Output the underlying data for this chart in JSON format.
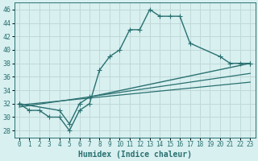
{
  "xlabel": "Humidex (Indice chaleur)",
  "bg_color": "#d8f0f0",
  "grid_color": "#c0d8d8",
  "line_color": "#2a7070",
  "xlim": [
    -0.5,
    23.5
  ],
  "ylim": [
    27,
    47
  ],
  "yticks": [
    28,
    30,
    32,
    34,
    36,
    38,
    40,
    42,
    44,
    46
  ],
  "xticks": [
    0,
    1,
    2,
    3,
    4,
    5,
    6,
    7,
    8,
    9,
    10,
    11,
    12,
    13,
    14,
    15,
    16,
    17,
    18,
    19,
    20,
    21,
    22,
    23
  ],
  "series": [
    {
      "x": [
        0,
        1,
        2,
        3,
        4,
        5,
        6,
        7,
        8,
        9,
        10,
        11,
        12,
        13,
        14,
        15,
        16,
        17,
        20,
        21,
        22,
        23
      ],
      "y": [
        32,
        31,
        31,
        30,
        30,
        28,
        31,
        32,
        37,
        39,
        40,
        43,
        43,
        46,
        45,
        45,
        45,
        41,
        39,
        38,
        38,
        38
      ],
      "marker": "+",
      "markersize": 4,
      "linewidth": 1.0
    },
    {
      "x": [
        0,
        4,
        5,
        6,
        7,
        23
      ],
      "y": [
        32,
        31,
        29,
        32,
        33,
        38
      ],
      "marker": "+",
      "markersize": 4,
      "linewidth": 1.0
    },
    {
      "x": [
        0,
        23
      ],
      "y": [
        31.5,
        36.5
      ],
      "marker": null,
      "linewidth": 0.9
    },
    {
      "x": [
        0,
        23
      ],
      "y": [
        31.8,
        35.2
      ],
      "marker": null,
      "linewidth": 0.9
    }
  ]
}
